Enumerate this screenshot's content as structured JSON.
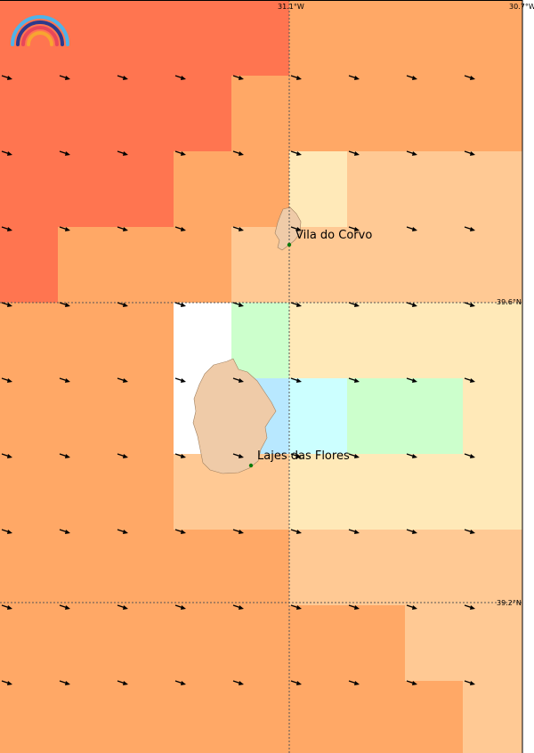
{
  "map": {
    "meridian_labels": [
      "31.1°W",
      "30.7°W"
    ],
    "parallel_labels": [
      "39.6°N",
      "39.2°N"
    ],
    "places": [
      {
        "name": "Vila do Corvo"
      },
      {
        "name": "Lajes das Flores"
      }
    ]
  }
}
